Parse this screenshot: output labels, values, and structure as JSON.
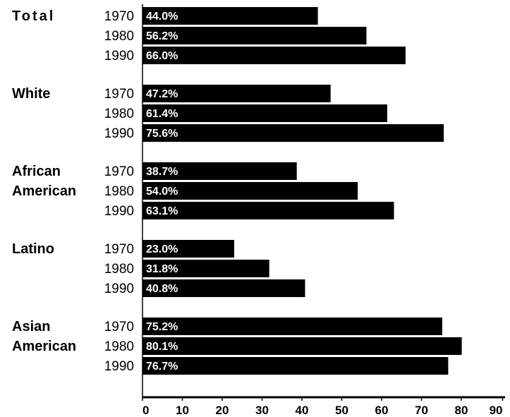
{
  "chart_data": {
    "type": "bar",
    "orientation": "horizontal",
    "groups": [
      {
        "name": "Total",
        "name_lines": [
          "Total"
        ],
        "bars": [
          {
            "year": "1970",
            "value": 44.0,
            "label": "44.0%"
          },
          {
            "year": "1980",
            "value": 56.2,
            "label": "56.2%"
          },
          {
            "year": "1990",
            "value": 66.0,
            "label": "66.0%"
          }
        ]
      },
      {
        "name": "White",
        "name_lines": [
          "White"
        ],
        "bars": [
          {
            "year": "1970",
            "value": 47.2,
            "label": "47.2%"
          },
          {
            "year": "1980",
            "value": 61.4,
            "label": "61.4%"
          },
          {
            "year": "1990",
            "value": 75.6,
            "label": "75.6%"
          }
        ]
      },
      {
        "name": "African American",
        "name_lines": [
          "African",
          "American"
        ],
        "bars": [
          {
            "year": "1970",
            "value": 38.7,
            "label": "38.7%"
          },
          {
            "year": "1980",
            "value": 54.0,
            "label": "54.0%"
          },
          {
            "year": "1990",
            "value": 63.1,
            "label": "63.1%"
          }
        ]
      },
      {
        "name": "Latino",
        "name_lines": [
          "Latino"
        ],
        "bars": [
          {
            "year": "1970",
            "value": 23.0,
            "label": "23.0%"
          },
          {
            "year": "1980",
            "value": 31.8,
            "label": "31.8%"
          },
          {
            "year": "1990",
            "value": 40.8,
            "label": "40.8%"
          }
        ]
      },
      {
        "name": "Asian American",
        "name_lines": [
          "Asian",
          "American"
        ],
        "bars": [
          {
            "year": "1970",
            "value": 75.2,
            "label": "75.2%"
          },
          {
            "year": "1980",
            "value": 80.1,
            "label": "80.1%"
          },
          {
            "year": "1990",
            "value": 76.7,
            "label": "76.7%"
          }
        ]
      }
    ],
    "x_ticks": [
      "0",
      "10",
      "20",
      "30",
      "40",
      "50",
      "60",
      "70",
      "80",
      "90"
    ],
    "xlim": [
      0,
      90
    ],
    "title": "",
    "xlabel": "",
    "ylabel": "",
    "grid": false,
    "bar_color": "#000000",
    "bar_label_color": "#ffffff"
  }
}
